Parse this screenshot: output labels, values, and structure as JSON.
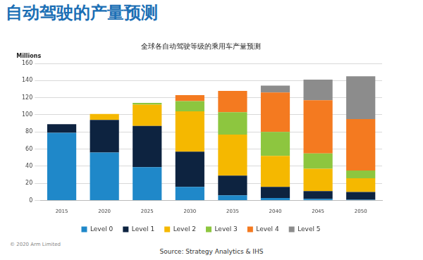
{
  "page_title": "自动驾驶的产量预测",
  "source": "Source: Strategy Analytics & IHS",
  "copyright": "© 2020 Arm Limited",
  "chart_data": {
    "type": "bar",
    "title": "全球各自动驾驶等级的乘用车产量预测",
    "y_label": "Millions",
    "categories": [
      "2015",
      "2020",
      "2025",
      "2030",
      "2035",
      "2040",
      "2045",
      "2050"
    ],
    "stacked": true,
    "grid": true,
    "legend": "bottom",
    "ylim": [
      0,
      160
    ],
    "yticks": [
      0,
      20,
      40,
      60,
      80,
      100,
      120,
      140,
      160
    ],
    "series": [
      {
        "name": "Level 0",
        "color": "#1f88c9",
        "values": [
          79,
          56,
          39,
          16,
          6,
          3,
          2,
          1
        ]
      },
      {
        "name": "Level 1",
        "color": "#0d2340",
        "values": [
          10,
          38,
          48,
          41,
          23,
          13,
          9,
          9
        ]
      },
      {
        "name": "Level 2",
        "color": "#f5b800",
        "values": [
          0,
          7,
          25,
          47,
          48,
          36,
          26,
          16
        ]
      },
      {
        "name": "Level 3",
        "color": "#8dc63f",
        "values": [
          0,
          0,
          2,
          12,
          26,
          28,
          18,
          9
        ]
      },
      {
        "name": "Level 4",
        "color": "#f47a20",
        "values": [
          0,
          0,
          0,
          7,
          25,
          46,
          62,
          60
        ]
      },
      {
        "name": "Level 5",
        "color": "#8c8c8c",
        "values": [
          0,
          0,
          0,
          0,
          0,
          8,
          24,
          50
        ]
      }
    ]
  }
}
